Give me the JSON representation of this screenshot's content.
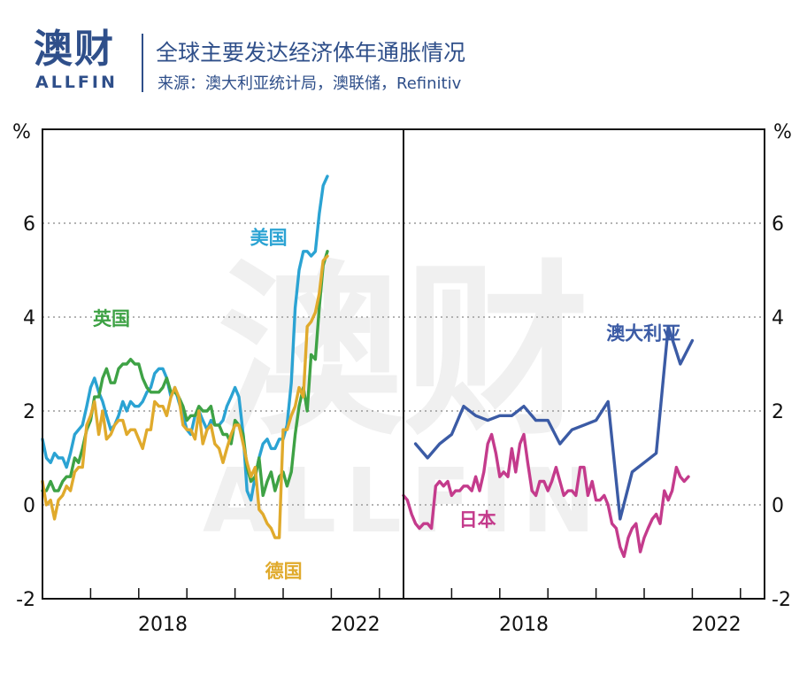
{
  "header": {
    "logo": "澳财",
    "logo_sub": "ALLFIN",
    "title": "全球主要发达经济体年通胀情况",
    "source": "来源：澳大利亚统计局，澳联储，Refinitiv"
  },
  "watermark": {
    "main": "澳财",
    "sub": "ALLFIN"
  },
  "chart_data": [
    {
      "type": "line",
      "panel": "left",
      "unit": "%",
      "ylim": [
        -2,
        8
      ],
      "yticks": [
        -2,
        0,
        2,
        4,
        6
      ],
      "xlim": [
        2016.0,
        2023.5
      ],
      "xtick_labels": [
        {
          "x": 2018,
          "label": "2018"
        },
        {
          "x": 2022,
          "label": "2022"
        }
      ],
      "grid": true,
      "series": [
        {
          "name": "美国",
          "color": "#2ba3d3",
          "x": [
            2016.0,
            2016.08,
            2016.17,
            2016.25,
            2016.33,
            2016.42,
            2016.5,
            2016.58,
            2016.67,
            2016.75,
            2016.83,
            2016.92,
            2017.0,
            2017.08,
            2017.17,
            2017.25,
            2017.33,
            2017.42,
            2017.5,
            2017.58,
            2017.67,
            2017.75,
            2017.83,
            2017.92,
            2018.0,
            2018.08,
            2018.17,
            2018.25,
            2018.33,
            2018.42,
            2018.5,
            2018.58,
            2018.67,
            2018.75,
            2018.83,
            2018.92,
            2019.0,
            2019.08,
            2019.17,
            2019.25,
            2019.33,
            2019.42,
            2019.5,
            2019.58,
            2019.67,
            2019.75,
            2019.83,
            2019.92,
            2020.0,
            2020.08,
            2020.17,
            2020.25,
            2020.33,
            2020.42,
            2020.5,
            2020.58,
            2020.67,
            2020.75,
            2020.83,
            2020.92,
            2021.0,
            2021.08,
            2021.17,
            2021.25,
            2021.33,
            2021.42,
            2021.5,
            2021.58,
            2021.67,
            2021.75,
            2021.83,
            2021.92
          ],
          "values": [
            1.4,
            1.0,
            0.9,
            1.1,
            1.0,
            1.0,
            0.8,
            1.1,
            1.5,
            1.6,
            1.7,
            2.1,
            2.5,
            2.7,
            2.4,
            2.2,
            1.9,
            1.6,
            1.7,
            1.9,
            2.2,
            2.0,
            2.2,
            2.1,
            2.1,
            2.2,
            2.4,
            2.5,
            2.8,
            2.9,
            2.9,
            2.7,
            2.3,
            2.5,
            2.2,
            1.9,
            1.6,
            1.5,
            1.9,
            2.0,
            1.8,
            1.6,
            1.8,
            1.7,
            1.7,
            1.8,
            2.1,
            2.3,
            2.5,
            2.3,
            1.5,
            0.3,
            0.1,
            0.6,
            1.0,
            1.3,
            1.4,
            1.2,
            1.2,
            1.4,
            1.4,
            1.7,
            2.6,
            4.2,
            5.0,
            5.4,
            5.4,
            5.3,
            5.4,
            6.2,
            6.8,
            7.0
          ]
        },
        {
          "name": "英国",
          "color": "#3ea245",
          "x": [
            2016.0,
            2016.08,
            2016.17,
            2016.25,
            2016.33,
            2016.42,
            2016.5,
            2016.58,
            2016.67,
            2016.75,
            2016.83,
            2016.92,
            2017.0,
            2017.08,
            2017.17,
            2017.25,
            2017.33,
            2017.42,
            2017.5,
            2017.58,
            2017.67,
            2017.75,
            2017.83,
            2017.92,
            2018.0,
            2018.08,
            2018.17,
            2018.25,
            2018.33,
            2018.42,
            2018.5,
            2018.58,
            2018.67,
            2018.75,
            2018.83,
            2018.92,
            2019.0,
            2019.08,
            2019.17,
            2019.25,
            2019.33,
            2019.42,
            2019.5,
            2019.58,
            2019.67,
            2019.75,
            2019.83,
            2019.92,
            2020.0,
            2020.08,
            2020.17,
            2020.25,
            2020.33,
            2020.42,
            2020.5,
            2020.58,
            2020.67,
            2020.75,
            2020.83,
            2020.92,
            2021.0,
            2021.08,
            2021.17,
            2021.25,
            2021.33,
            2021.42,
            2021.5,
            2021.58,
            2021.67,
            2021.75,
            2021.83,
            2021.92
          ],
          "values": [
            0.3,
            0.3,
            0.5,
            0.3,
            0.3,
            0.5,
            0.6,
            0.6,
            1.0,
            0.9,
            1.2,
            1.6,
            1.8,
            2.3,
            2.3,
            2.7,
            2.9,
            2.6,
            2.6,
            2.9,
            3.0,
            3.0,
            3.1,
            3.0,
            3.0,
            2.7,
            2.5,
            2.4,
            2.4,
            2.4,
            2.5,
            2.7,
            2.4,
            2.4,
            2.3,
            2.1,
            1.8,
            1.9,
            1.9,
            2.1,
            2.0,
            2.0,
            2.1,
            1.7,
            1.7,
            1.5,
            1.5,
            1.3,
            1.8,
            1.7,
            1.5,
            0.8,
            0.5,
            0.6,
            1.0,
            0.2,
            0.5,
            0.7,
            0.3,
            0.6,
            0.7,
            0.4,
            0.7,
            1.5,
            2.1,
            2.5,
            2.0,
            3.2,
            3.1,
            4.2,
            5.1,
            5.4
          ]
        },
        {
          "name": "德国",
          "color": "#e0aa2c",
          "x": [
            2016.0,
            2016.08,
            2016.17,
            2016.25,
            2016.33,
            2016.42,
            2016.5,
            2016.58,
            2016.67,
            2016.75,
            2016.83,
            2016.92,
            2017.0,
            2017.08,
            2017.17,
            2017.25,
            2017.33,
            2017.42,
            2017.5,
            2017.58,
            2017.67,
            2017.75,
            2017.83,
            2017.92,
            2018.0,
            2018.08,
            2018.17,
            2018.25,
            2018.33,
            2018.42,
            2018.5,
            2018.58,
            2018.67,
            2018.75,
            2018.83,
            2018.92,
            2019.0,
            2019.08,
            2019.17,
            2019.25,
            2019.33,
            2019.42,
            2019.5,
            2019.58,
            2019.67,
            2019.75,
            2019.83,
            2019.92,
            2020.0,
            2020.08,
            2020.17,
            2020.25,
            2020.33,
            2020.42,
            2020.5,
            2020.58,
            2020.67,
            2020.75,
            2020.83,
            2020.92,
            2021.0,
            2021.08,
            2021.17,
            2021.25,
            2021.33,
            2021.42,
            2021.5,
            2021.58,
            2021.67,
            2021.75,
            2021.83,
            2021.92
          ],
          "values": [
            0.5,
            0.0,
            0.1,
            -0.3,
            0.1,
            0.2,
            0.4,
            0.3,
            0.7,
            0.8,
            0.8,
            1.7,
            1.9,
            2.2,
            1.5,
            2.0,
            1.4,
            1.5,
            1.7,
            1.8,
            1.8,
            1.5,
            1.6,
            1.6,
            1.4,
            1.2,
            1.6,
            1.6,
            2.2,
            2.1,
            2.1,
            1.9,
            2.3,
            2.5,
            2.3,
            1.7,
            1.6,
            1.6,
            1.4,
            2.0,
            1.3,
            1.6,
            1.7,
            1.3,
            1.2,
            0.9,
            1.2,
            1.5,
            1.7,
            1.7,
            1.3,
            0.9,
            0.6,
            0.8,
            -0.1,
            -0.2,
            -0.4,
            -0.5,
            -0.7,
            -0.7,
            1.6,
            1.6,
            1.9,
            2.1,
            2.5,
            2.3,
            3.8,
            3.9,
            4.1,
            4.5,
            5.2,
            5.3
          ]
        }
      ],
      "annotations": [
        {
          "text": "美国",
          "series": "美国"
        },
        {
          "text": "英国",
          "series": "英国"
        },
        {
          "text": "德国",
          "series": "德国"
        }
      ]
    },
    {
      "type": "line",
      "panel": "right",
      "unit": "%",
      "ylim": [
        -2,
        8
      ],
      "yticks": [
        -2,
        0,
        2,
        4,
        6
      ],
      "xlim": [
        2016.0,
        2023.5
      ],
      "xtick_labels": [
        {
          "x": 2018,
          "label": "2018"
        },
        {
          "x": 2022,
          "label": "2022"
        }
      ],
      "grid": true,
      "series": [
        {
          "name": "澳大利亚",
          "color": "#3b5ba5",
          "x": [
            2016.25,
            2016.5,
            2016.75,
            2017.0,
            2017.25,
            2017.5,
            2017.75,
            2018.0,
            2018.25,
            2018.5,
            2018.75,
            2019.0,
            2019.25,
            2019.5,
            2019.75,
            2020.0,
            2020.25,
            2020.5,
            2020.75,
            2021.0,
            2021.25,
            2021.5,
            2021.75,
            2022.0
          ],
          "values": [
            1.3,
            1.0,
            1.3,
            1.5,
            2.1,
            1.9,
            1.8,
            1.9,
            1.9,
            2.1,
            1.8,
            1.8,
            1.3,
            1.6,
            1.7,
            1.8,
            2.2,
            -0.3,
            0.7,
            0.9,
            1.1,
            3.8,
            3.0,
            3.5
          ]
        },
        {
          "name": "日本",
          "color": "#c43b8c",
          "x": [
            2016.0,
            2016.08,
            2016.17,
            2016.25,
            2016.33,
            2016.42,
            2016.5,
            2016.58,
            2016.67,
            2016.75,
            2016.83,
            2016.92,
            2017.0,
            2017.08,
            2017.17,
            2017.25,
            2017.33,
            2017.42,
            2017.5,
            2017.58,
            2017.67,
            2017.75,
            2017.83,
            2017.92,
            2018.0,
            2018.08,
            2018.17,
            2018.25,
            2018.33,
            2018.42,
            2018.5,
            2018.58,
            2018.67,
            2018.75,
            2018.83,
            2018.92,
            2019.0,
            2019.08,
            2019.17,
            2019.25,
            2019.33,
            2019.42,
            2019.5,
            2019.58,
            2019.67,
            2019.75,
            2019.83,
            2019.92,
            2020.0,
            2020.08,
            2020.17,
            2020.25,
            2020.33,
            2020.42,
            2020.5,
            2020.58,
            2020.67,
            2020.75,
            2020.83,
            2020.92,
            2021.0,
            2021.08,
            2021.17,
            2021.25,
            2021.33,
            2021.42,
            2021.5,
            2021.58,
            2021.67,
            2021.75,
            2021.83,
            2021.92
          ],
          "values": [
            0.2,
            0.1,
            -0.2,
            -0.4,
            -0.5,
            -0.4,
            -0.4,
            -0.5,
            0.4,
            0.5,
            0.4,
            0.5,
            0.2,
            0.3,
            0.3,
            0.4,
            0.4,
            0.3,
            0.6,
            0.3,
            0.7,
            1.3,
            1.5,
            1.1,
            0.6,
            0.7,
            0.6,
            1.2,
            0.7,
            1.3,
            1.5,
            0.9,
            0.3,
            0.2,
            0.5,
            0.5,
            0.3,
            0.5,
            0.8,
            0.5,
            0.2,
            0.3,
            0.3,
            0.2,
            0.8,
            0.8,
            0.2,
            0.5,
            0.1,
            0.1,
            0.2,
            0.0,
            -0.4,
            -0.5,
            -0.9,
            -1.1,
            -0.7,
            -0.5,
            -0.4,
            -1.0,
            -0.7,
            -0.5,
            -0.3,
            -0.2,
            -0.4,
            0.3,
            0.1,
            0.3,
            0.8,
            0.6,
            0.5,
            0.6
          ]
        }
      ],
      "annotations": [
        {
          "text": "澳大利亚",
          "series": "澳大利亚"
        },
        {
          "text": "日本",
          "series": "日本"
        }
      ]
    }
  ]
}
